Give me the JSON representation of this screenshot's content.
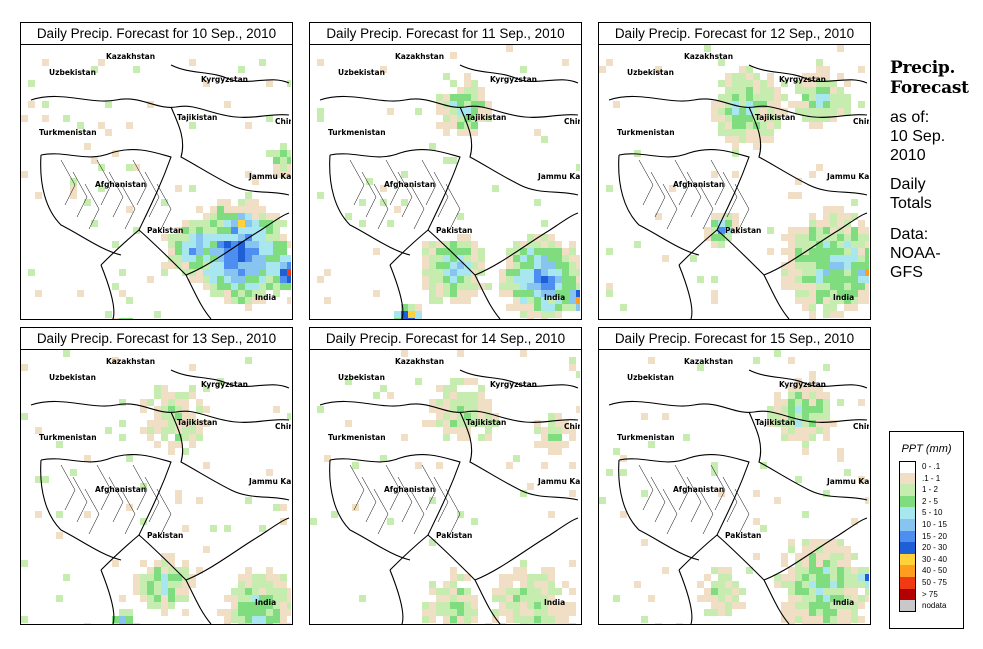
{
  "panels": [
    {
      "title": "Daily Precip. Forecast for  10 Sep., 2010"
    },
    {
      "title": "Daily Precip. Forecast for  11 Sep., 2010"
    },
    {
      "title": "Daily Precip. Forecast for  12 Sep., 2010"
    },
    {
      "title": "Daily Precip. Forecast for  13 Sep., 2010"
    },
    {
      "title": "Daily Precip. Forecast for  14 Sep., 2010"
    },
    {
      "title": "Daily Precip. Forecast for  15 Sep., 2010"
    }
  ],
  "map_labels": [
    "Kazakhstan",
    "Uzbekistan",
    "Kyrgyzstan",
    "Tajikistan",
    "China",
    "Turkmenistan",
    "Jammu Kashmir",
    "Afghanistan",
    "Pakistan",
    "India"
  ],
  "sidebar": {
    "title": "Precip.\nForecast",
    "as_of": "as of:\n10 Sep.\n2010",
    "totals": "Daily\nTotals",
    "source": "Data:\nNOAA-\nGFS"
  },
  "legend": {
    "title": "PPT (mm)",
    "items": [
      {
        "label": "0 - .1",
        "color": "#ffffff"
      },
      {
        "label": ".1 - 1",
        "color": "#f0dfc4"
      },
      {
        "label": "1 - 2",
        "color": "#c6ecb0"
      },
      {
        "label": "2 - 5",
        "color": "#7fdd7f"
      },
      {
        "label": "5 - 10",
        "color": "#a8e6f0"
      },
      {
        "label": "10 - 15",
        "color": "#87c5f0"
      },
      {
        "label": "15 - 20",
        "color": "#4e8ef0"
      },
      {
        "label": "20 - 30",
        "color": "#1f5fd6"
      },
      {
        "label": "30 - 40",
        "color": "#ffd23a"
      },
      {
        "label": "40 - 50",
        "color": "#ff9d1f"
      },
      {
        "label": "50 - 75",
        "color": "#f03a14"
      },
      {
        "label": "> 75",
        "color": "#b30000"
      },
      {
        "label": "nodata",
        "color": "#c8c8c8"
      }
    ]
  }
}
